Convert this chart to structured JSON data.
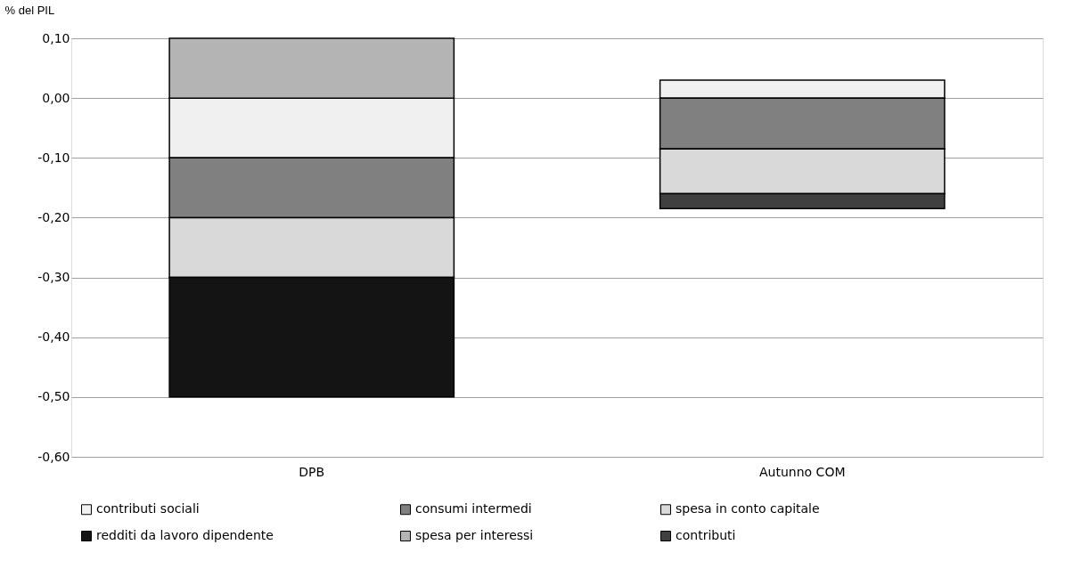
{
  "chart_data": {
    "type": "bar",
    "stacked": true,
    "ylabel": "% del PIL",
    "categories": [
      "DPB",
      "Autunno COM"
    ],
    "series": [
      {
        "name": "contributi sociali",
        "color": "#f0f0f0",
        "values": [
          -0.1,
          0.03
        ]
      },
      {
        "name": "consumi intermedi",
        "color": "#808080",
        "values": [
          -0.1,
          -0.085
        ]
      },
      {
        "name": "spesa in conto capitale",
        "color": "#d9d9d9",
        "values": [
          -0.1,
          -0.075
        ]
      },
      {
        "name": "redditi da lavoro dipendente",
        "color": "#141414",
        "values": [
          -0.2,
          null
        ]
      },
      {
        "name": "spesa per interessi",
        "color": "#b4b4b4",
        "values": [
          0.1,
          null
        ]
      },
      {
        "name": "contributi",
        "color": "#404040",
        "values": [
          null,
          -0.025
        ]
      }
    ],
    "ylim": [
      -0.6,
      0.1
    ],
    "yticks": [
      {
        "value": 0.1,
        "label": "0,10"
      },
      {
        "value": 0,
        "label": "0,00"
      },
      {
        "value": -0.1,
        "label": "-0,10"
      },
      {
        "value": -0.2,
        "label": "-0,20"
      },
      {
        "value": -0.3,
        "label": "-0,30"
      },
      {
        "value": -0.4,
        "label": "-0,40"
      },
      {
        "value": -0.5,
        "label": "-0,50"
      },
      {
        "value": -0.6,
        "label": "-0,60"
      }
    ],
    "grid": "y",
    "legend": "bottom"
  }
}
